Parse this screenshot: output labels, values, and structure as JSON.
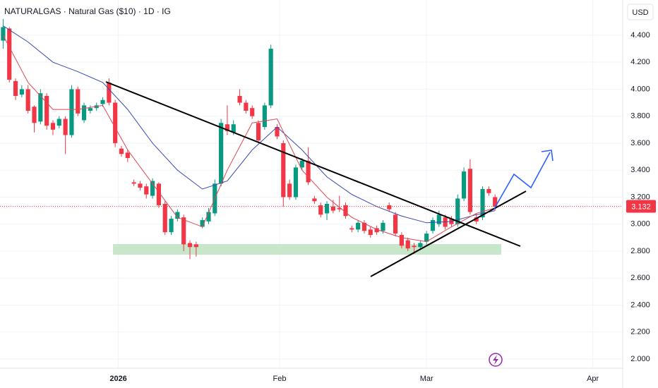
{
  "chart_data": {
    "type": "candlestick",
    "title": "NATURALGAS · Natural Gas ($10) · 1D · IG",
    "currency": "USD",
    "last_price": 3.132,
    "x": [
      0,
      1,
      2,
      3,
      4,
      5,
      6,
      7,
      8,
      9,
      10,
      11,
      12,
      13,
      14,
      15,
      16,
      17,
      18,
      19,
      20,
      21,
      22,
      23,
      24,
      25,
      26,
      27,
      28,
      29,
      30,
      31,
      32,
      33,
      34,
      35,
      36,
      37,
      38,
      39,
      40,
      41,
      42,
      43,
      44,
      45,
      46,
      47,
      48,
      49,
      50,
      51,
      52,
      53,
      54,
      55,
      56,
      57,
      58,
      59,
      60,
      61,
      62,
      63,
      64,
      65,
      66,
      67,
      68,
      69,
      70,
      71,
      72,
      73,
      74,
      75,
      76,
      77,
      78,
      79
    ],
    "open": [
      4.36,
      4.45,
      4.06,
      3.96,
      4.0,
      3.87,
      3.76,
      3.95,
      3.75,
      3.73,
      3.78,
      3.66,
      4.0,
      3.77,
      3.84,
      3.86,
      3.89,
      4.05,
      3.9,
      3.56,
      3.53,
      3.31,
      3.3,
      3.28,
      3.21,
      3.3,
      3.15,
      2.94,
      3.04,
      3.05,
      2.86,
      2.85,
      2.98,
      3.02,
      3.08,
      3.3,
      3.74,
      3.68,
      3.95,
      3.9,
      3.86,
      3.75,
      3.72,
      3.88,
      3.72,
      3.6,
      3.3,
      3.2,
      3.42,
      3.47,
      3.19,
      3.14,
      3.08,
      3.13,
      3.12,
      3.14,
      2.97,
      2.96,
      3.01,
      2.96,
      2.97,
      2.95,
      3.14,
      3.07,
      2.92,
      2.88,
      2.84,
      2.83,
      2.87,
      2.95,
      3.0,
      3.05,
      3.04,
      3.0,
      3.19,
      3.41,
      3.05,
      3.05,
      3.26,
      3.2
    ],
    "high": [
      4.52,
      4.46,
      4.08,
      4.03,
      4.03,
      3.88,
      4.0,
      3.97,
      3.77,
      3.8,
      3.8,
      4.03,
      4.02,
      3.9,
      3.88,
      3.9,
      3.94,
      4.08,
      3.92,
      3.58,
      3.55,
      3.33,
      3.32,
      3.3,
      3.34,
      3.31,
      3.17,
      3.06,
      3.11,
      3.07,
      2.88,
      2.87,
      3.05,
      3.12,
      3.33,
      3.78,
      3.88,
      3.77,
      4.0,
      3.92,
      3.88,
      3.77,
      3.9,
      4.33,
      3.74,
      3.62,
      3.33,
      3.44,
      3.49,
      3.57,
      3.21,
      3.16,
      3.17,
      3.18,
      3.21,
      3.16,
      2.99,
      3.03,
      3.03,
      2.98,
      2.99,
      3.03,
      3.16,
      3.09,
      2.94,
      2.9,
      2.86,
      2.88,
      2.95,
      3.05,
      3.1,
      3.07,
      3.06,
      3.22,
      3.42,
      3.48,
      3.08,
      3.28,
      3.28,
      3.22
    ],
    "low": [
      4.3,
      4.05,
      3.92,
      3.94,
      3.82,
      3.68,
      3.74,
      3.7,
      3.66,
      3.71,
      3.52,
      3.64,
      3.8,
      3.75,
      3.82,
      3.84,
      3.87,
      3.88,
      3.57,
      3.5,
      3.46,
      3.28,
      3.25,
      3.19,
      3.19,
      3.12,
      2.92,
      2.92,
      3.02,
      2.8,
      2.74,
      2.76,
      2.97,
      3.0,
      3.06,
      3.28,
      3.66,
      3.66,
      3.88,
      3.82,
      3.78,
      3.6,
      3.7,
      3.86,
      3.63,
      3.13,
      3.18,
      3.18,
      3.4,
      3.29,
      3.15,
      3.05,
      3.03,
      3.08,
      3.09,
      3.04,
      2.94,
      2.94,
      2.93,
      2.9,
      2.92,
      2.93,
      3.09,
      2.91,
      2.82,
      2.8,
      2.78,
      2.81,
      2.85,
      2.93,
      2.98,
      2.96,
      2.98,
      2.98,
      3.17,
      3.07,
      3.0,
      3.03,
      3.21,
      3.1
    ],
    "close": [
      4.46,
      4.07,
      3.95,
      4.0,
      3.84,
      3.75,
      3.97,
      3.73,
      3.7,
      3.78,
      3.66,
      4.0,
      3.82,
      3.88,
      3.86,
      3.88,
      3.92,
      3.9,
      3.6,
      3.52,
      3.49,
      3.3,
      3.27,
      3.22,
      3.32,
      3.14,
      2.94,
      3.04,
      3.09,
      2.85,
      2.83,
      2.83,
      3.03,
      3.09,
      3.3,
      3.75,
      3.69,
      3.74,
      3.9,
      3.84,
      3.8,
      3.62,
      3.88,
      4.3,
      3.65,
      3.2,
      3.2,
      3.42,
      3.47,
      3.31,
      3.17,
      3.07,
      3.15,
      3.1,
      3.11,
      3.06,
      2.96,
      3.01,
      2.95,
      2.92,
      2.94,
      3.01,
      3.11,
      2.93,
      2.84,
      2.82,
      2.83,
      2.86,
      2.93,
      3.03,
      3.07,
      2.98,
      3.0,
      3.19,
      3.39,
      3.09,
      3.02,
      3.26,
      3.23,
      3.13
    ],
    "up_color": "#089981",
    "down_color": "#f23645",
    "lines": [
      {
        "color": "#3a4bb0",
        "x": [
          0,
          4,
          8,
          12,
          16,
          20,
          24,
          28,
          32,
          36,
          40,
          44,
          48,
          52,
          56,
          60,
          64,
          68,
          72,
          76,
          79
        ],
        "values": [
          4.47,
          4.35,
          4.2,
          4.13,
          4.05,
          3.85,
          3.6,
          3.4,
          3.26,
          3.32,
          3.55,
          3.72,
          3.55,
          3.35,
          3.22,
          3.13,
          3.06,
          3.01,
          3.02,
          3.07,
          3.1
        ]
      },
      {
        "color": "#e04552",
        "x": [
          0,
          4,
          8,
          12,
          16,
          20,
          24,
          28,
          32,
          36,
          40,
          44,
          48,
          52,
          56,
          60,
          64,
          68,
          72,
          76,
          79
        ],
        "values": [
          4.4,
          4.05,
          3.85,
          3.85,
          3.88,
          3.55,
          3.3,
          3.05,
          2.98,
          3.4,
          3.75,
          3.78,
          3.4,
          3.2,
          3.05,
          2.96,
          2.9,
          2.87,
          2.98,
          3.08,
          3.12
        ]
      }
    ],
    "xlim": [
      -0.5,
      99.5
    ],
    "xticks": [
      {
        "value": 18.5,
        "label": "2026"
      },
      {
        "value": 44.4,
        "label": "Feb"
      },
      {
        "value": 68,
        "label": "Mar"
      },
      {
        "value": 94.7,
        "label": "Apr"
      }
    ],
    "ylim": [
      1.932,
      4.661
    ],
    "yticks": [
      {
        "value": 2.0,
        "label": "2.000"
      },
      {
        "value": 2.2,
        "label": "2.200"
      },
      {
        "value": 2.4,
        "label": "2.400"
      },
      {
        "value": 2.6,
        "label": "2.600"
      },
      {
        "value": 2.8,
        "label": "2.800"
      },
      {
        "value": 3.0,
        "label": "3.000"
      },
      {
        "value": 3.2,
        "label": "3.200"
      },
      {
        "value": 3.4,
        "label": "3.400"
      },
      {
        "value": 3.6,
        "label": "3.600"
      },
      {
        "value": 3.8,
        "label": "3.800"
      },
      {
        "value": 4.0,
        "label": "4.000"
      },
      {
        "value": 4.2,
        "label": "4.200"
      },
      {
        "value": 4.4,
        "label": "4.400"
      }
    ],
    "grid": true
  }
}
